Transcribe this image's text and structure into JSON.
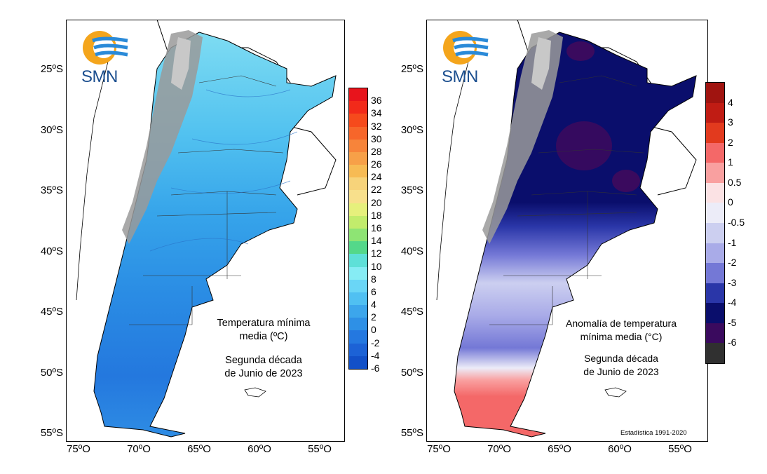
{
  "logo": {
    "text": "SMN"
  },
  "lat_labels": [
    "25ºS",
    "30ºS",
    "35ºS",
    "40ºS",
    "45ºS",
    "50ºS",
    "55ºS"
  ],
  "lon_labels": [
    "75ºO",
    "70ºO",
    "65ºO",
    "60ºO",
    "55ºO"
  ],
  "left_map": {
    "title_lines": [
      "Temperatura mínima",
      "media (ºC)"
    ],
    "subtitle_lines": [
      "Segunda década",
      "de Junio de 2023"
    ],
    "colorbar": {
      "labels": [
        "36",
        "34",
        "32",
        "30",
        "28",
        "26",
        "24",
        "22",
        "20",
        "18",
        "16",
        "14",
        "12",
        "10",
        "8",
        "6",
        "4",
        "2",
        "0",
        "-2",
        "-4",
        "-6"
      ],
      "colors": [
        "#e8141c",
        "#f22a1a",
        "#f64a1c",
        "#f7662a",
        "#f7843a",
        "#f7a048",
        "#f7bb54",
        "#f7d37a",
        "#f8e08c",
        "#e6f07c",
        "#c2ec6c",
        "#8ee474",
        "#54d88a",
        "#5ee0d8",
        "#86ecf4",
        "#6ad6f6",
        "#50c0f2",
        "#3ca6ec",
        "#2e90e6",
        "#2478e0",
        "#1c62d6",
        "#1250c8"
      ]
    }
  },
  "right_map": {
    "title_lines": [
      "Anomalía de temperatura",
      "mínima media (°C)"
    ],
    "subtitle_lines": [
      "Segunda década",
      "de Junio de 2023"
    ],
    "footnote": "Estadística 1991-2020",
    "colorbar": {
      "labels": [
        "4",
        "3",
        "2",
        "1",
        "0.5",
        "0",
        "-0.5",
        "-1",
        "-2",
        "-3",
        "-4",
        "-5",
        "-6"
      ],
      "colors": [
        "#a01410",
        "#c01c14",
        "#e23a1e",
        "#f46868",
        "#f9a0a0",
        "#fbe2e4",
        "#ececf8",
        "#cccff0",
        "#a9abe8",
        "#7478d6",
        "#2a36a8",
        "#0a0e6c",
        "#3a0a5e",
        "#303030"
      ]
    }
  }
}
